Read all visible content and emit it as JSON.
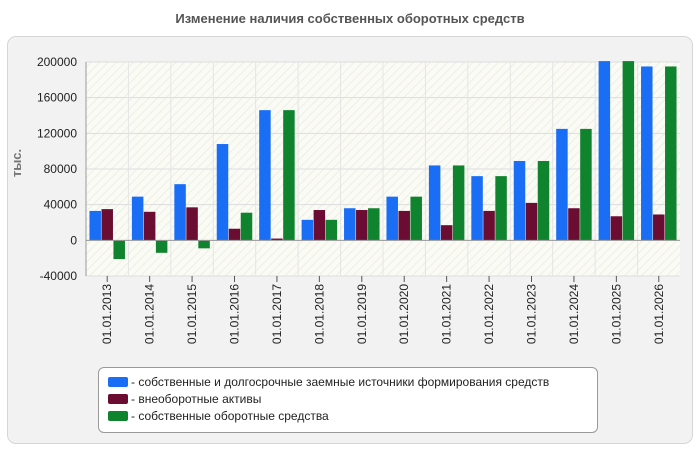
{
  "chart_data": {
    "type": "bar",
    "title": "Изменение наличия собственных оборотных средств",
    "ylabel": "тыс.",
    "xlabel": "",
    "ylim": [
      -40000,
      200000
    ],
    "yticks": [
      200000,
      160000,
      120000,
      80000,
      40000,
      0,
      -40000
    ],
    "grid": true,
    "legend_position": "bottom",
    "categories": [
      "01.01.2013",
      "01.01.2014",
      "01.01.2015",
      "01.01.2016",
      "01.01.2017",
      "01.01.2018",
      "01.01.2019",
      "01.01.2020",
      "01.01.2021",
      "01.01.2022",
      "01.01.2023",
      "01.01.2024",
      "01.01.2025",
      "01.01.2026"
    ],
    "series": [
      {
        "name": "- собственные и долгосрочные заемные источники формирования средств",
        "color": "#1a6ef5",
        "values": [
          33000,
          49000,
          63000,
          108000,
          146000,
          23000,
          36000,
          49000,
          84000,
          72000,
          89000,
          125000,
          201000,
          195000
        ]
      },
      {
        "name": "- внеоборотные активы",
        "color": "#6b0d33",
        "values": [
          35000,
          32000,
          37000,
          13000,
          2000,
          34000,
          34000,
          33000,
          17000,
          33000,
          42000,
          36000,
          27000,
          29000
        ]
      },
      {
        "name": "- собственные оборотные средства",
        "color": "#10832f",
        "values": [
          -21000,
          -14000,
          -9000,
          31000,
          146000,
          23000,
          36000,
          49000,
          84000,
          72000,
          89000,
          125000,
          201000,
          195000
        ]
      }
    ]
  }
}
